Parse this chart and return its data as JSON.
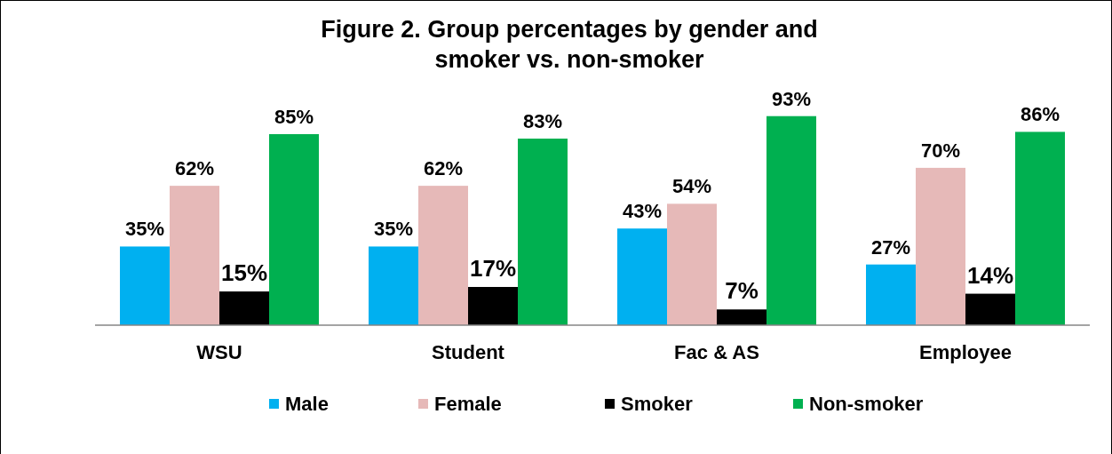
{
  "chart_data": {
    "type": "bar",
    "title": "Figure 2. Group percentages by gender and smoker vs. non-smoker",
    "categories": [
      "WSU",
      "Student",
      "Fac & AS",
      "Employee"
    ],
    "series": [
      {
        "name": "Male",
        "color": "#00b0f0",
        "values": [
          35,
          35,
          43,
          27
        ],
        "value_labels": [
          "35%",
          "35%",
          "43%",
          "27%"
        ]
      },
      {
        "name": "Female",
        "color": "#e6b9b8",
        "values": [
          62,
          62,
          54,
          70
        ],
        "value_labels": [
          "62%",
          "62%",
          "54%",
          "70%"
        ]
      },
      {
        "name": "Smoker",
        "color": "#000000",
        "values": [
          15,
          17,
          7,
          14
        ],
        "value_labels": [
          "15%",
          "17%",
          "7%",
          "14%"
        ]
      },
      {
        "name": "Non-smoker",
        "color": "#00b050",
        "values": [
          85,
          83,
          93,
          86
        ],
        "value_labels": [
          "85%",
          "83%",
          "93%",
          "86%"
        ]
      }
    ],
    "legend": "bottom"
  }
}
